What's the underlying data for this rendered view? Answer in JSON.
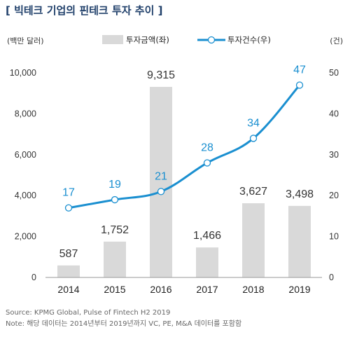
{
  "header": {
    "title": "[ 빅테크 기업의 핀테크 투자 추이 ]"
  },
  "footer": {
    "source": "Source: KPMG Global, Pulse of Fintech H2 2019",
    "note": "Note: 해당 데이터는 2014년부터 2019년까지 VC, PE, M&A 데이터를 포함함"
  },
  "colors": {
    "title": "#1f3f6a",
    "bar": "#d9d9d9",
    "line": "#1a8fd0"
  },
  "chart_data": {
    "type": "bar",
    "categories": [
      "2014",
      "2015",
      "2016",
      "2017",
      "2018",
      "2019"
    ],
    "y_left": {
      "unit": "(백만 달러)",
      "range": [
        0,
        10000
      ],
      "ticks": [
        "0",
        "2,000",
        "4,000",
        "6,000",
        "8,000",
        "10,000"
      ]
    },
    "y_right": {
      "unit": "(건)",
      "range": [
        0,
        50
      ],
      "ticks": [
        "0",
        "10",
        "20",
        "30",
        "40",
        "50"
      ]
    },
    "series": [
      {
        "name": "투자금액(좌)",
        "type": "bar",
        "axis": "left",
        "values": [
          587,
          1752,
          9315,
          1466,
          3627,
          3498
        ],
        "labels": [
          "587",
          "1,752",
          "9,315",
          "1,466",
          "3,627",
          "3,498"
        ]
      },
      {
        "name": "투자건수(우)",
        "type": "line",
        "axis": "right",
        "values": [
          17,
          19,
          21,
          28,
          34,
          47
        ],
        "labels": [
          "17",
          "19",
          "21",
          "28",
          "34",
          "47"
        ]
      }
    ],
    "legend_position": "top",
    "grid": false
  }
}
